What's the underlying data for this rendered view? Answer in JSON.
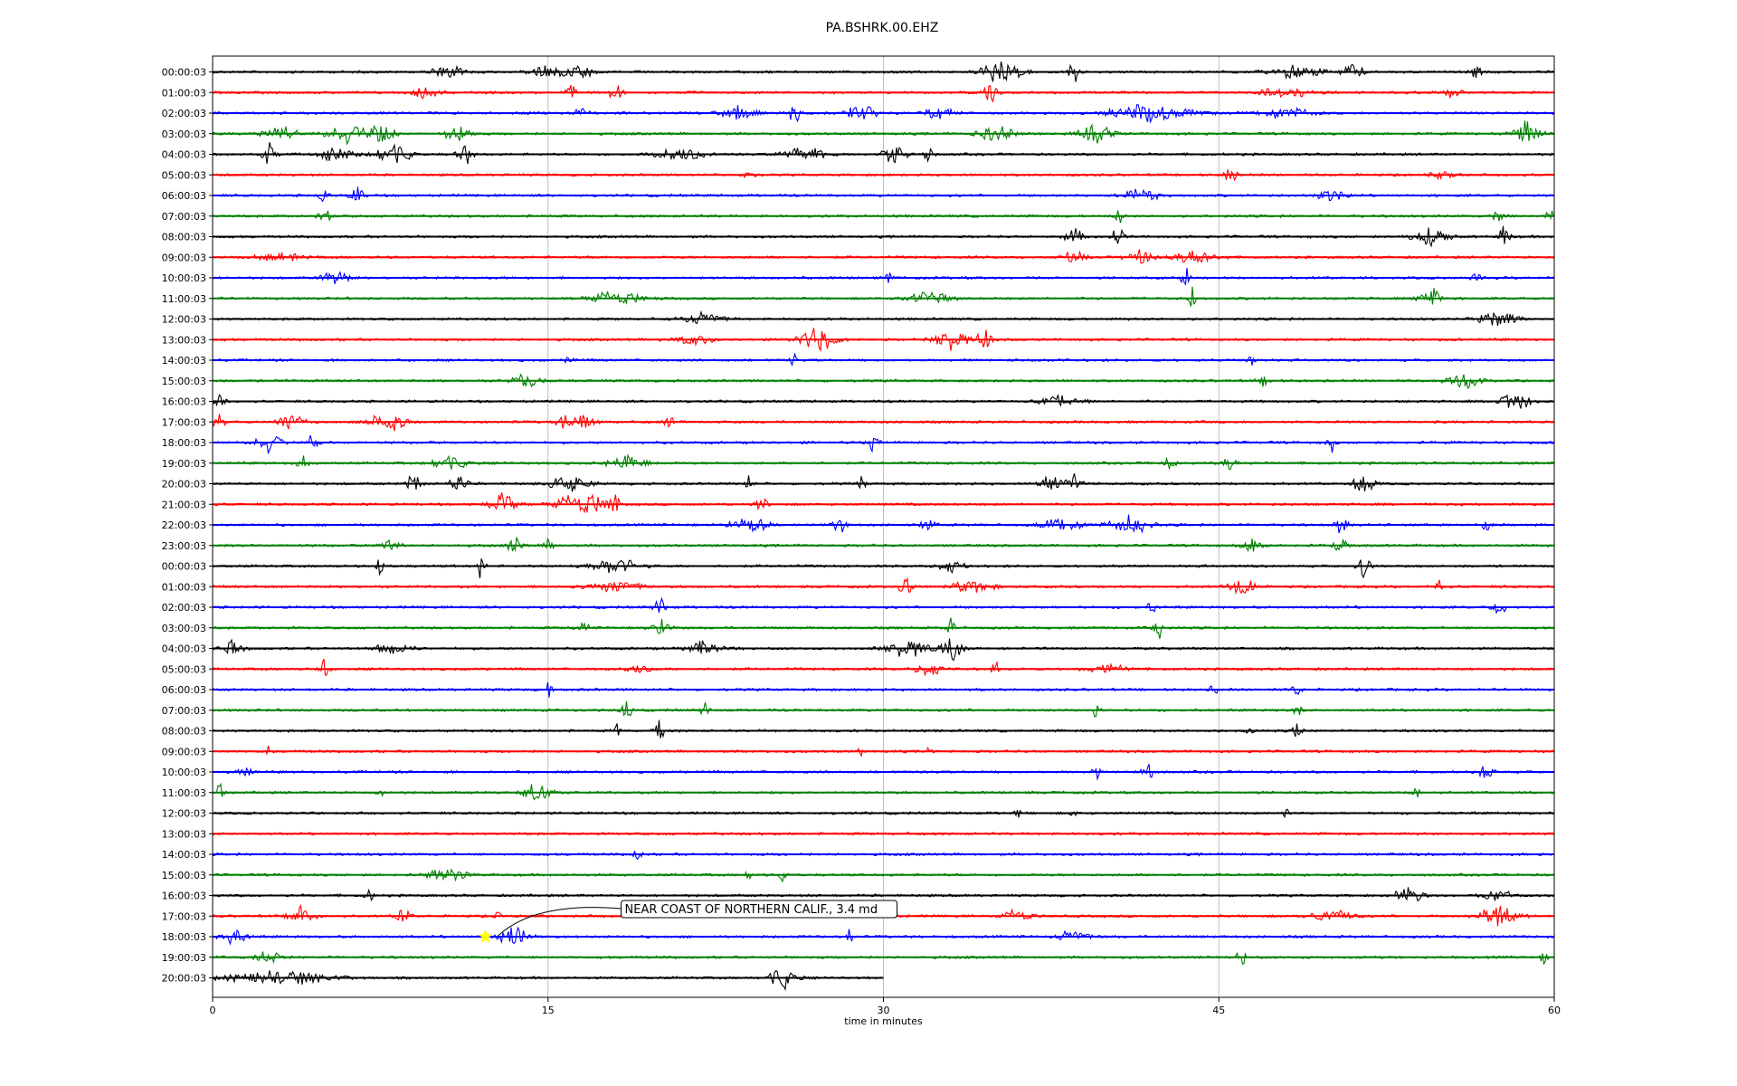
{
  "chart_data": {
    "type": "line",
    "title": "PA.BSHRK.00.EHZ",
    "xlabel": "time in minutes",
    "ylabel": "",
    "xlim": [
      0,
      60
    ],
    "x_ticks": [
      "0",
      "15",
      "30",
      "45",
      "60"
    ],
    "grid": "vertical at x ticks",
    "row_colors": [
      "#000000",
      "#ff0000",
      "#0000ff",
      "#008000"
    ],
    "rows": [
      {
        "label": "00:00:03",
        "bursts": [
          [
            10.5,
            1.2,
            0.6
          ],
          [
            15,
            1.5,
            0.5
          ],
          [
            16.5,
            0.8,
            0.7
          ],
          [
            35.3,
            1.5,
            1.0
          ],
          [
            38.5,
            0.5,
            0.8
          ],
          [
            48.5,
            2.0,
            0.5
          ],
          [
            51,
            0.8,
            0.6
          ],
          [
            56.5,
            0.4,
            0.6
          ]
        ]
      },
      {
        "label": "01:00:03",
        "bursts": [
          [
            9.5,
            1.0,
            0.5
          ],
          [
            16,
            0.6,
            0.5
          ],
          [
            18,
            0.5,
            0.9
          ],
          [
            34.8,
            0.5,
            0.9
          ],
          [
            48,
            2.0,
            0.4
          ],
          [
            55.5,
            0.6,
            0.5
          ]
        ]
      },
      {
        "label": "02:00:03",
        "bursts": [
          [
            16.5,
            0.6,
            0.6
          ],
          [
            23.5,
            1.2,
            0.7
          ],
          [
            26,
            0.5,
            0.9
          ],
          [
            29,
            1.0,
            0.9
          ],
          [
            32.5,
            1.0,
            0.6
          ],
          [
            42,
            3.0,
            0.8
          ],
          [
            48,
            2.0,
            0.5
          ]
        ]
      },
      {
        "label": "03:00:03",
        "bursts": [
          [
            3,
            1.5,
            0.6
          ],
          [
            6,
            1.5,
            0.8
          ],
          [
            7.5,
            1.0,
            1.0
          ],
          [
            11,
            1.0,
            0.8
          ],
          [
            35,
            1.5,
            0.6
          ],
          [
            39.5,
            1.2,
            0.8
          ],
          [
            58.8,
            1.0,
            1.0
          ]
        ]
      },
      {
        "label": "04:00:03",
        "bursts": [
          [
            2.5,
            0.5,
            1.0
          ],
          [
            5.5,
            1.2,
            0.8
          ],
          [
            8,
            1.5,
            0.9
          ],
          [
            11.3,
            0.6,
            1.0
          ],
          [
            21,
            2.0,
            0.6
          ],
          [
            26.5,
            1.5,
            0.7
          ],
          [
            30.5,
            0.8,
            1.0
          ],
          [
            32,
            0.4,
            0.9
          ]
        ]
      },
      {
        "label": "05:00:03",
        "bursts": [
          [
            24,
            0.4,
            0.6
          ],
          [
            45.5,
            0.5,
            0.7
          ],
          [
            55,
            1.0,
            0.3
          ]
        ]
      },
      {
        "label": "06:00:03",
        "bursts": [
          [
            5,
            0.4,
            0.8
          ],
          [
            6.5,
            0.5,
            1.0
          ],
          [
            41.5,
            1.5,
            0.5
          ],
          [
            50,
            1.0,
            0.6
          ]
        ]
      },
      {
        "label": "07:00:03",
        "bursts": [
          [
            5,
            0.5,
            0.6
          ],
          [
            40.5,
            0.3,
            0.9
          ],
          [
            57.5,
            0.5,
            0.5
          ],
          [
            59.8,
            0.3,
            0.6
          ]
        ]
      },
      {
        "label": "08:00:03",
        "bursts": [
          [
            38.5,
            0.7,
            0.7
          ],
          [
            40.5,
            0.4,
            1.0
          ],
          [
            54.5,
            1.5,
            0.7
          ],
          [
            57.8,
            0.4,
            1.0
          ]
        ]
      },
      {
        "label": "09:00:03",
        "bursts": [
          [
            3,
            2.0,
            0.3
          ],
          [
            38.5,
            0.8,
            0.5
          ],
          [
            41.5,
            1.0,
            0.6
          ],
          [
            44,
            1.5,
            0.7
          ]
        ]
      },
      {
        "label": "10:00:03",
        "bursts": [
          [
            5.5,
            1.0,
            0.6
          ],
          [
            30.3,
            0.3,
            0.9
          ],
          [
            43.5,
            0.3,
            1.0
          ],
          [
            56.5,
            0.3,
            0.7
          ]
        ]
      },
      {
        "label": "11:00:03",
        "bursts": [
          [
            18,
            2.0,
            0.6
          ],
          [
            32,
            1.5,
            0.6
          ],
          [
            43.8,
            0.3,
            1.0
          ],
          [
            54.5,
            0.8,
            0.9
          ]
        ]
      },
      {
        "label": "12:00:03",
        "bursts": [
          [
            22,
            1.5,
            0.5
          ],
          [
            57.5,
            1.5,
            0.7
          ]
        ]
      },
      {
        "label": "13:00:03",
        "bursts": [
          [
            21.5,
            1.5,
            0.4
          ],
          [
            27,
            1.5,
            1.0
          ],
          [
            33,
            1.2,
            1.0
          ],
          [
            34.5,
            0.5,
            1.0
          ]
        ]
      },
      {
        "label": "14:00:03",
        "bursts": [
          [
            16,
            0.3,
            0.7
          ],
          [
            26,
            0.3,
            0.6
          ],
          [
            46.5,
            0.3,
            0.8
          ]
        ]
      },
      {
        "label": "15:00:03",
        "bursts": [
          [
            14,
            1.0,
            0.7
          ],
          [
            47,
            0.5,
            0.5
          ],
          [
            56,
            1.5,
            0.6
          ]
        ]
      },
      {
        "label": "16:00:03",
        "bursts": [
          [
            0.3,
            0.4,
            0.7
          ],
          [
            38,
            1.5,
            0.5
          ],
          [
            58.2,
            1.2,
            1.0
          ]
        ]
      },
      {
        "label": "17:00:03",
        "bursts": [
          [
            0.3,
            0.4,
            0.9
          ],
          [
            3.5,
            1.0,
            0.8
          ],
          [
            7.8,
            1.2,
            1.0
          ],
          [
            16.2,
            1.2,
            1.0
          ],
          [
            20.5,
            0.5,
            0.5
          ]
        ]
      },
      {
        "label": "18:00:03",
        "bursts": [
          [
            2.5,
            1.0,
            0.8
          ],
          [
            4.5,
            0.4,
            0.7
          ],
          [
            29.5,
            0.5,
            0.6
          ],
          [
            50,
            0.3,
            0.9
          ]
        ]
      },
      {
        "label": "19:00:03",
        "bursts": [
          [
            4,
            0.5,
            0.6
          ],
          [
            10.5,
            1.5,
            0.6
          ],
          [
            18.5,
            1.5,
            0.6
          ],
          [
            42.8,
            0.5,
            0.7
          ],
          [
            45.5,
            0.5,
            0.6
          ]
        ]
      },
      {
        "label": "20:00:03",
        "bursts": [
          [
            9,
            0.5,
            1.0
          ],
          [
            11,
            0.6,
            1.0
          ],
          [
            16,
            1.5,
            0.7
          ],
          [
            24,
            0.3,
            0.9
          ],
          [
            29,
            0.3,
            0.9
          ],
          [
            37.5,
            1.0,
            0.8
          ],
          [
            38.5,
            0.6,
            1.0
          ],
          [
            51.5,
            0.8,
            1.0
          ]
        ]
      },
      {
        "label": "21:00:03",
        "bursts": [
          [
            13,
            1.0,
            0.9
          ],
          [
            16.5,
            2.0,
            1.0
          ],
          [
            18,
            0.3,
            0.9
          ],
          [
            24.5,
            0.5,
            0.6
          ]
        ]
      },
      {
        "label": "22:00:03",
        "bursts": [
          [
            24,
            1.5,
            0.6
          ],
          [
            28,
            0.5,
            0.8
          ],
          [
            32,
            0.5,
            0.6
          ],
          [
            38,
            1.5,
            0.7
          ],
          [
            41,
            1.5,
            0.8
          ],
          [
            50.5,
            0.5,
            0.7
          ],
          [
            57,
            0.3,
            0.8
          ]
        ]
      },
      {
        "label": "23:00:03",
        "bursts": [
          [
            8,
            0.7,
            0.6
          ],
          [
            13.5,
            0.5,
            0.8
          ],
          [
            15,
            0.3,
            0.7
          ],
          [
            46.5,
            0.8,
            0.6
          ],
          [
            50.5,
            0.5,
            0.7
          ]
        ]
      },
      {
        "label": "00:00:03",
        "bursts": [
          [
            7.5,
            0.3,
            1.0
          ],
          [
            12,
            0.3,
            1.0
          ],
          [
            18,
            2.0,
            0.6
          ],
          [
            33,
            1.0,
            0.5
          ],
          [
            51.5,
            0.5,
            1.0
          ]
        ]
      },
      {
        "label": "01:00:03",
        "bursts": [
          [
            18,
            2.0,
            0.5
          ],
          [
            31,
            0.5,
            0.8
          ],
          [
            34,
            1.5,
            0.6
          ],
          [
            46,
            1.0,
            0.8
          ],
          [
            54.8,
            0.3,
            0.6
          ]
        ]
      },
      {
        "label": "02:00:03",
        "bursts": [
          [
            20,
            0.5,
            0.7
          ],
          [
            42,
            0.3,
            0.8
          ],
          [
            57.5,
            0.6,
            0.6
          ]
        ]
      },
      {
        "label": "03:00:03",
        "bursts": [
          [
            16.5,
            0.5,
            0.6
          ],
          [
            20,
            0.8,
            0.8
          ],
          [
            33,
            0.3,
            1.0
          ],
          [
            42.3,
            0.4,
            0.9
          ]
        ]
      },
      {
        "label": "04:00:03",
        "bursts": [
          [
            0.8,
            1.0,
            0.6
          ],
          [
            8,
            1.5,
            0.4
          ],
          [
            22,
            1.5,
            0.6
          ],
          [
            31,
            1.5,
            0.8
          ],
          [
            33,
            1.0,
            0.9
          ]
        ]
      },
      {
        "label": "05:00:03",
        "bursts": [
          [
            5,
            0.4,
            1.0
          ],
          [
            19,
            1.0,
            0.4
          ],
          [
            32,
            1.0,
            0.6
          ],
          [
            35,
            0.3,
            0.7
          ],
          [
            40,
            1.5,
            0.4
          ]
        ]
      },
      {
        "label": "06:00:03",
        "bursts": [
          [
            15,
            0.3,
            0.6
          ],
          [
            44.8,
            0.3,
            0.8
          ],
          [
            48.5,
            0.3,
            0.9
          ]
        ]
      },
      {
        "label": "07:00:03",
        "bursts": [
          [
            18.5,
            0.4,
            0.7
          ],
          [
            22,
            0.3,
            0.8
          ],
          [
            39.5,
            0.3,
            1.0
          ],
          [
            48.5,
            0.3,
            0.7
          ]
        ]
      },
      {
        "label": "08:00:03",
        "bursts": [
          [
            18,
            0.3,
            0.9
          ],
          [
            20,
            0.3,
            1.0
          ],
          [
            46.3,
            0.3,
            0.8
          ],
          [
            48.5,
            0.3,
            0.8
          ]
        ]
      },
      {
        "label": "09:00:03",
        "bursts": [
          [
            2.5,
            0.3,
            0.5
          ],
          [
            29,
            0.3,
            0.6
          ],
          [
            32,
            0.3,
            0.5
          ]
        ]
      },
      {
        "label": "10:00:03",
        "bursts": [
          [
            1.5,
            0.5,
            0.5
          ],
          [
            39.5,
            0.3,
            0.7
          ],
          [
            41.8,
            0.4,
            0.9
          ],
          [
            57,
            0.5,
            0.8
          ]
        ]
      },
      {
        "label": "11:00:03",
        "bursts": [
          [
            0.3,
            0.3,
            1.0
          ],
          [
            7.5,
            0.3,
            0.6
          ],
          [
            14.5,
            1.0,
            1.0
          ],
          [
            53.8,
            0.3,
            0.6
          ]
        ]
      },
      {
        "label": "12:00:03",
        "bursts": [
          [
            36,
            0.2,
            0.4
          ],
          [
            38.5,
            0.2,
            0.4
          ],
          [
            48,
            0.2,
            0.5
          ]
        ]
      },
      {
        "label": "13:00:03",
        "bursts": []
      },
      {
        "label": "14:00:03",
        "bursts": [
          [
            19,
            0.3,
            0.6
          ]
        ]
      },
      {
        "label": "15:00:03",
        "bursts": [
          [
            10.5,
            1.5,
            0.6
          ],
          [
            24,
            0.5,
            0.4
          ],
          [
            25.5,
            0.3,
            0.5
          ]
        ]
      },
      {
        "label": "16:00:03",
        "bursts": [
          [
            7,
            0.3,
            0.6
          ],
          [
            53.5,
            1.0,
            0.7
          ],
          [
            57.5,
            1.0,
            0.6
          ]
        ]
      },
      {
        "label": "17:00:03",
        "bursts": [
          [
            4,
            1.0,
            0.9
          ],
          [
            8.5,
            0.5,
            0.8
          ],
          [
            12.8,
            0.2,
            0.8
          ],
          [
            36,
            1.0,
            0.6
          ],
          [
            50,
            1.5,
            0.6
          ],
          [
            57.5,
            1.5,
            1.0
          ]
        ]
      },
      {
        "label": "18:00:03",
        "bursts": [
          [
            1,
            1.0,
            0.7
          ],
          [
            13.5,
            1.0,
            1.0
          ],
          [
            28.5,
            0.3,
            0.9
          ],
          [
            38.5,
            1.2,
            0.5
          ]
        ]
      },
      {
        "label": "19:00:03",
        "bursts": [
          [
            2.5,
            1.0,
            0.6
          ],
          [
            46,
            0.3,
            0.9
          ],
          [
            59.5,
            0.3,
            0.7
          ]
        ]
      },
      {
        "label": "20:00:03",
        "bursts": [
          [
            3,
            4.0,
            0.6
          ],
          [
            25.5,
            1.0,
            1.0
          ]
        ],
        "end_minute": 30
      }
    ],
    "annotation": {
      "text": "NEAR COAST OF NORTHERN CALIF., 3.4 md",
      "row": 42,
      "x": 12.2,
      "marker": "star",
      "marker_color": "#ffff00"
    }
  }
}
